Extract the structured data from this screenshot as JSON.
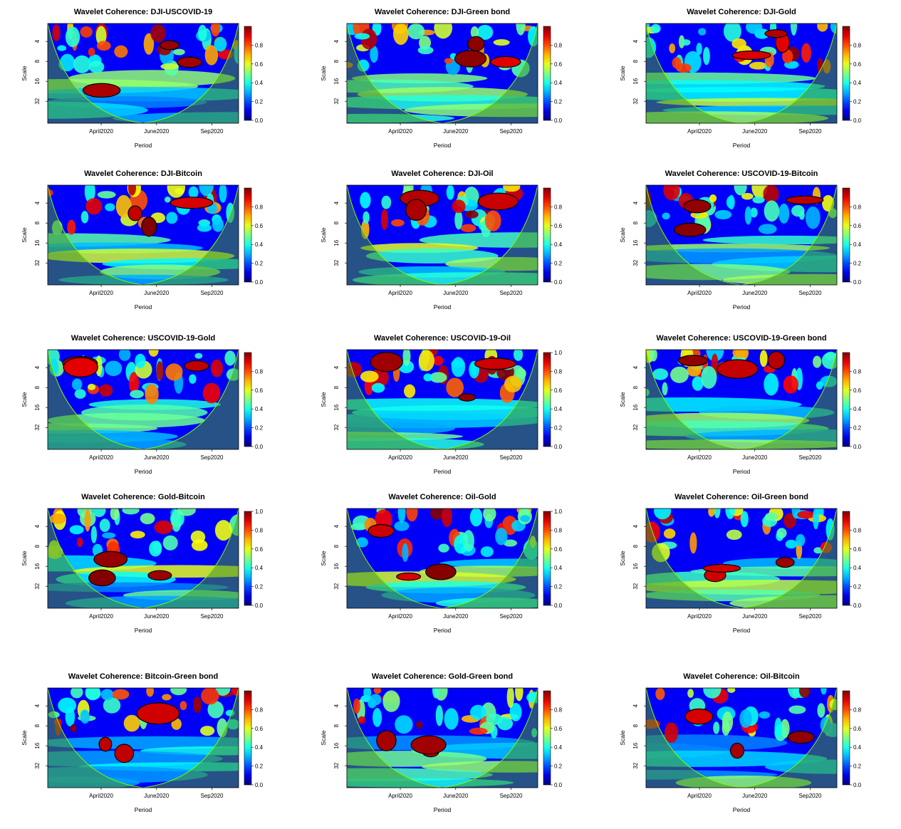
{
  "chart_data": [
    {
      "type": "heatmap",
      "title": "Wavelet Coherence: DJI-USCOVID-19",
      "xlabel": "Period",
      "ylabel": "Scale",
      "x_ticks": [
        "April2020",
        "June2020",
        "Sep2020"
      ],
      "y_ticks": [
        "4",
        "8",
        "16",
        "32"
      ],
      "colorbar_ticks": [
        "0.0",
        "0.2",
        "0.4",
        "0.6",
        "0.8"
      ],
      "colorbar_range": [
        0,
        1
      ]
    },
    {
      "type": "heatmap",
      "title": "Wavelet Coherence: DJI-Green bond",
      "xlabel": "Period",
      "ylabel": "Scale",
      "x_ticks": [
        "April2020",
        "June2020",
        "Sep2020"
      ],
      "y_ticks": [
        "4",
        "8",
        "16",
        "32"
      ],
      "colorbar_ticks": [
        "0.0",
        "0.2",
        "0.4",
        "0.6",
        "0.8"
      ],
      "colorbar_range": [
        0,
        1
      ]
    },
    {
      "type": "heatmap",
      "title": "Wavelet Coherence: DJI-Gold",
      "xlabel": "Period",
      "ylabel": "Scale",
      "x_ticks": [
        "April2020",
        "June2020",
        "Sep2020"
      ],
      "y_ticks": [
        "4",
        "8",
        "16",
        "32"
      ],
      "colorbar_ticks": [
        "0.0",
        "0.2",
        "0.4",
        "0.6",
        "0.8"
      ],
      "colorbar_range": [
        0,
        1
      ]
    },
    {
      "type": "heatmap",
      "title": "Wavelet Coherence: DJI-Bitcoin",
      "xlabel": "Period",
      "ylabel": "Scale",
      "x_ticks": [
        "April2020",
        "June2020",
        "Sep2020"
      ],
      "y_ticks": [
        "4",
        "8",
        "16",
        "32"
      ],
      "colorbar_ticks": [
        "0.0",
        "0.2",
        "0.4",
        "0.6",
        "0.8"
      ],
      "colorbar_range": [
        0,
        1
      ]
    },
    {
      "type": "heatmap",
      "title": "Wavelet Coherence: DJI-Oil",
      "xlabel": "Period",
      "ylabel": "Scale",
      "x_ticks": [
        "April2020",
        "June2020",
        "Sep2020"
      ],
      "y_ticks": [
        "4",
        "8",
        "16",
        "32"
      ],
      "colorbar_ticks": [
        "0.0",
        "0.2",
        "0.4",
        "0.6",
        "0.8"
      ],
      "colorbar_range": [
        0,
        1
      ]
    },
    {
      "type": "heatmap",
      "title": "Wavelet Coherence: USCOVID-19-Bitcoin",
      "xlabel": "Period",
      "ylabel": "Scale",
      "x_ticks": [
        "April2020",
        "June2020",
        "Sep2020"
      ],
      "y_ticks": [
        "4",
        "8",
        "16",
        "32"
      ],
      "colorbar_ticks": [
        "0.0",
        "0.2",
        "0.4",
        "0.6",
        "0.8"
      ],
      "colorbar_range": [
        0,
        1
      ]
    },
    {
      "type": "heatmap",
      "title": "Wavelet Coherence: USCOVID-19-Gold",
      "xlabel": "Period",
      "ylabel": "Scale",
      "x_ticks": [
        "April2020",
        "June2020",
        "Sep2020"
      ],
      "y_ticks": [
        "4",
        "8",
        "16",
        "32"
      ],
      "colorbar_ticks": [
        "0.0",
        "0.2",
        "0.4",
        "0.6",
        "0.8"
      ],
      "colorbar_range": [
        0,
        1
      ]
    },
    {
      "type": "heatmap",
      "title": "Wavelet Coherence: USCOVID-19-Oil",
      "xlabel": "Period",
      "ylabel": "Scale",
      "x_ticks": [
        "April2020",
        "June2020",
        "Sep2020"
      ],
      "y_ticks": [
        "4",
        "8",
        "16",
        "32"
      ],
      "colorbar_ticks": [
        "0.0",
        "0.2",
        "0.4",
        "0.6",
        "0.8",
        "1.0"
      ],
      "colorbar_range": [
        0,
        1
      ]
    },
    {
      "type": "heatmap",
      "title": "Wavelet Coherence: USCOVID-19-Green bond",
      "xlabel": "Period",
      "ylabel": "Scale",
      "x_ticks": [
        "April2020",
        "June2020",
        "Sep2020"
      ],
      "y_ticks": [
        "4",
        "8",
        "16",
        "32"
      ],
      "colorbar_ticks": [
        "0.0",
        "0.2",
        "0.4",
        "0.6",
        "0.8"
      ],
      "colorbar_range": [
        0,
        1
      ]
    },
    {
      "type": "heatmap",
      "title": "Wavelet Coherence: Gold-Bitcoin",
      "xlabel": "Period",
      "ylabel": "Scale",
      "x_ticks": [
        "April2020",
        "June2020",
        "Sep2020"
      ],
      "y_ticks": [
        "4",
        "8",
        "16",
        "32"
      ],
      "colorbar_ticks": [
        "0.0",
        "0.2",
        "0.4",
        "0.6",
        "0.8",
        "1.0"
      ],
      "colorbar_range": [
        0,
        1
      ]
    },
    {
      "type": "heatmap",
      "title": "Wavelet Coherence: Oil-Gold",
      "xlabel": "Period",
      "ylabel": "Scale",
      "x_ticks": [
        "April2020",
        "June2020",
        "Sep2020"
      ],
      "y_ticks": [
        "4",
        "8",
        "16",
        "32"
      ],
      "colorbar_ticks": [
        "0.0",
        "0.2",
        "0.4",
        "0.6",
        "0.8",
        "1.0"
      ],
      "colorbar_range": [
        0,
        1
      ]
    },
    {
      "type": "heatmap",
      "title": "Wavelet Coherence: Oil-Green bond",
      "xlabel": "Period",
      "ylabel": "Scale",
      "x_ticks": [
        "April2020",
        "June2020",
        "Sep2020"
      ],
      "y_ticks": [
        "4",
        "8",
        "16",
        "32"
      ],
      "colorbar_ticks": [
        "0.0",
        "0.2",
        "0.4",
        "0.6",
        "0.8"
      ],
      "colorbar_range": [
        0,
        1
      ]
    },
    {
      "type": "heatmap",
      "title": "Wavelet Coherence: Bitcoin-Green bond",
      "xlabel": "Period",
      "ylabel": "Scale",
      "x_ticks": [
        "April2020",
        "June2020",
        "Sep2020"
      ],
      "y_ticks": [
        "4",
        "8",
        "16",
        "32"
      ],
      "colorbar_ticks": [
        "0.0",
        "0.2",
        "0.4",
        "0.6",
        "0.8"
      ],
      "colorbar_range": [
        0,
        1
      ]
    },
    {
      "type": "heatmap",
      "title": "Wavelet Coherence: Gold-Green bond",
      "xlabel": "Period",
      "ylabel": "Scale",
      "x_ticks": [
        "April2020",
        "June2020",
        "Sep2020"
      ],
      "y_ticks": [
        "4",
        "8",
        "16",
        "32"
      ],
      "colorbar_ticks": [
        "0.0",
        "0.2",
        "0.4",
        "0.6",
        "0.8"
      ],
      "colorbar_range": [
        0,
        1
      ]
    },
    {
      "type": "heatmap",
      "title": "Wavelet Coherence: Oil-Bitcoin",
      "xlabel": "Period",
      "ylabel": "Scale",
      "x_ticks": [
        "April2020",
        "June2020",
        "Sep2020"
      ],
      "y_ticks": [
        "4",
        "8",
        "16",
        "32"
      ],
      "colorbar_ticks": [
        "0.0",
        "0.2",
        "0.4",
        "0.6",
        "0.8"
      ],
      "colorbar_range": [
        0,
        1
      ]
    }
  ]
}
